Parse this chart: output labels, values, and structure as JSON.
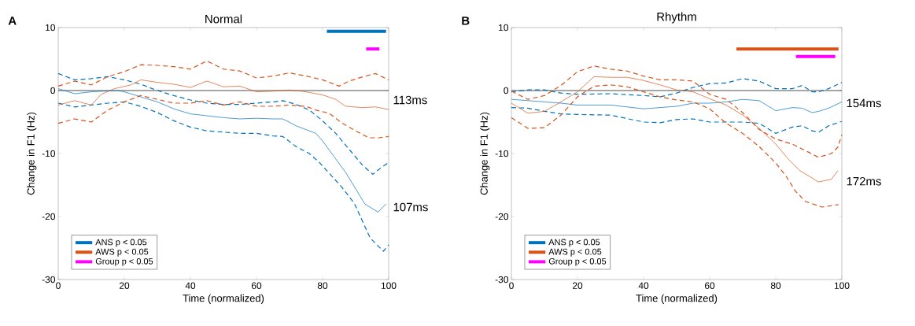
{
  "chart_data": [
    {
      "type": "line",
      "title": "Normal",
      "xlabel": "Time (normalized)",
      "ylabel": "Change in F1 (Hz)",
      "xlim": [
        0,
        100
      ],
      "ylim": [
        -30,
        10
      ],
      "xticks": [
        0,
        20,
        40,
        60,
        80,
        100
      ],
      "yticks": [
        -30,
        -20,
        -10,
        0,
        10
      ],
      "legend": "bottom left",
      "ref_lines": [
        {
          "axis": "y",
          "value": 0,
          "color": "#000000"
        }
      ],
      "annotations": [
        "A",
        "113ms",
        "107ms"
      ],
      "series": [
        {
          "color": "#0072bd",
          "line_style": "solid",
          "x": [
            0,
            5,
            10,
            18,
            20,
            25,
            30,
            35,
            40,
            50,
            55,
            60,
            65,
            68,
            72,
            75,
            78,
            80,
            87,
            92.8,
            96.8,
            99.2
          ],
          "values": [
            0.3,
            -0.5,
            -0.2,
            0,
            -0.2,
            -1,
            -1.8,
            -2.9,
            -3.7,
            -4.3,
            -4.5,
            -4.4,
            -4.5,
            -4.5,
            -5.6,
            -6.2,
            -6.8,
            -8,
            -13,
            -18,
            -19.3,
            -18
          ]
        },
        {
          "color": "#0072bd",
          "line_style": "dashed",
          "x": [
            0,
            5,
            10,
            15,
            20,
            25,
            30,
            35,
            40,
            45,
            50,
            55,
            60,
            65,
            68,
            72,
            76,
            80,
            84,
            88,
            92,
            95.2,
            97.6,
            100
          ],
          "values": [
            2.7,
            1.7,
            1.9,
            2.2,
            1.7,
            1,
            0,
            -0.8,
            -1.5,
            -2,
            -2.2,
            -2.2,
            -2,
            -1.8,
            -1.6,
            -2.2,
            -3.1,
            -4.8,
            -6.8,
            -9.3,
            -11.8,
            -13.3,
            -12.3,
            -11.4
          ]
        },
        {
          "color": "#0072bd",
          "line_style": "dashed",
          "x": [
            0,
            5,
            10,
            15,
            20,
            25,
            30,
            35,
            40,
            45,
            50,
            55,
            60,
            65,
            68,
            72,
            76,
            79,
            85.6,
            89.6,
            94.4,
            98.4,
            100
          ],
          "values": [
            -2,
            -2.6,
            -2.3,
            -2,
            -1.8,
            -2.5,
            -3.5,
            -4.8,
            -5.8,
            -6.4,
            -6.6,
            -6.8,
            -6.8,
            -7.2,
            -7.3,
            -8.9,
            -10,
            -11.4,
            -15.2,
            -17.9,
            -23.4,
            -25.5,
            -24.5
          ]
        },
        {
          "color": "#d95319",
          "line_style": "solid",
          "x": [
            0,
            5,
            10,
            13,
            17,
            22,
            25,
            30,
            35,
            40,
            45,
            50,
            55,
            60,
            65,
            70,
            75,
            80,
            84,
            87,
            92,
            96,
            100
          ],
          "values": [
            -2.3,
            -1.6,
            -2.3,
            -0.6,
            0.3,
            0.9,
            1.7,
            1.3,
            1,
            0.5,
            1.5,
            0.6,
            0.7,
            -0.2,
            -0.1,
            0.1,
            -0.2,
            -0.7,
            -1.4,
            -2.5,
            -2.7,
            -2.6,
            -3
          ]
        },
        {
          "color": "#d95319",
          "line_style": "dashed",
          "x": [
            0,
            5,
            10,
            15,
            20,
            25,
            30,
            35,
            40,
            45,
            50,
            55,
            60,
            65,
            70,
            75,
            80,
            85,
            88,
            93,
            96,
            100
          ],
          "values": [
            0.7,
            1.5,
            0.9,
            2.2,
            3,
            4.1,
            4,
            3.8,
            3.4,
            4.7,
            3.4,
            3.1,
            2,
            2.3,
            2.8,
            2.3,
            1.7,
            0.7,
            1.5,
            2.3,
            2.7,
            1.7
          ]
        },
        {
          "color": "#d95319",
          "line_style": "dashed",
          "x": [
            0,
            5,
            10,
            15,
            20,
            25,
            30,
            35,
            40,
            45,
            50,
            55,
            60,
            65,
            70,
            75,
            78,
            82,
            86,
            90,
            94,
            97,
            100
          ],
          "values": [
            -5.2,
            -4.5,
            -5,
            -3.1,
            -1.8,
            -0.8,
            -1.4,
            -2,
            -2,
            -1.6,
            -2.3,
            -1.8,
            -2.5,
            -2.5,
            -2.3,
            -2.5,
            -3.1,
            -3.6,
            -5.2,
            -6.4,
            -7.5,
            -7.5,
            -7.3
          ]
        },
        {
          "name": "ANS p < 0.05",
          "color": "#0072bd",
          "line_style": "solid",
          "x": [
            81.3,
            99.2
          ],
          "values": [
            9.4,
            9.4
          ]
        },
        {
          "name": "AWS p < 0.05",
          "color": "#d95319",
          "line_style": "solid"
        },
        {
          "name": "Group p < 0.05",
          "color": "#ff00ff",
          "line_style": "solid",
          "x": [
            93.2,
            97.2
          ],
          "values": [
            6.6,
            6.6
          ]
        }
      ]
    },
    {
      "type": "line",
      "title": "Rhythm",
      "xlabel": "Time (normalized)",
      "ylabel": "Change in F1 (Hz)",
      "xlim": [
        0,
        100
      ],
      "ylim": [
        -30,
        10
      ],
      "xticks": [
        0,
        20,
        40,
        60,
        80,
        100
      ],
      "yticks": [
        -30,
        -20,
        -10,
        0,
        10
      ],
      "legend": "bottom left",
      "ref_lines": [
        {
          "axis": "y",
          "value": 0,
          "color": "#000000"
        }
      ],
      "annotations": [
        "B",
        "154ms",
        "172ms"
      ],
      "series": [
        {
          "color": "#0072bd",
          "line_style": "solid",
          "x": [
            0,
            5,
            10,
            15,
            20,
            30,
            40,
            45,
            50,
            55,
            60,
            65,
            70,
            75,
            80,
            85,
            88,
            91,
            93,
            96,
            100
          ],
          "values": [
            -1.4,
            -1.6,
            -1.8,
            -2,
            -2.3,
            -2.3,
            -2.9,
            -2.7,
            -2.5,
            -2,
            -2,
            -1.8,
            -1.4,
            -1.6,
            -3.2,
            -2.7,
            -2.8,
            -3.5,
            -3.3,
            -2.8,
            -1.8
          ]
        },
        {
          "color": "#0072bd",
          "line_style": "dashed",
          "x": [
            0,
            5,
            10,
            15,
            20,
            30,
            40,
            45,
            50,
            55,
            60,
            65,
            70,
            75,
            80,
            85,
            88,
            91,
            93,
            96,
            100
          ],
          "values": [
            -0.2,
            0.1,
            0.1,
            -0.4,
            -0.6,
            -0.5,
            -0.8,
            -1,
            -0.4,
            0.5,
            1.1,
            1.2,
            1.9,
            1.5,
            0.3,
            0.3,
            0.8,
            -0.2,
            -0.2,
            0.3,
            1.3
          ]
        },
        {
          "color": "#0072bd",
          "line_style": "dashed",
          "x": [
            0,
            5,
            10,
            15,
            20,
            30,
            40,
            45,
            50,
            55,
            60,
            65,
            70,
            75,
            80,
            85,
            88,
            91,
            93,
            96,
            100
          ],
          "values": [
            -2.7,
            -2.8,
            -3.3,
            -3.7,
            -3.8,
            -3.9,
            -5,
            -5.1,
            -4.6,
            -4.5,
            -5,
            -5,
            -5,
            -5.2,
            -6.8,
            -5.8,
            -5.6,
            -6.4,
            -6.6,
            -5.6,
            -4.9
          ]
        },
        {
          "color": "#d95319",
          "line_style": "solid",
          "x": [
            0,
            5,
            10,
            15,
            20,
            25,
            30,
            35,
            40,
            45,
            50,
            55,
            60,
            65,
            70,
            75,
            80,
            84,
            87.3,
            92.9,
            96.8,
            98.8
          ],
          "values": [
            -2,
            -3.6,
            -3.3,
            -1.8,
            -0.2,
            2.2,
            2.1,
            2.1,
            1.6,
            0.9,
            0.1,
            -0.2,
            -1.3,
            -2.3,
            -3.9,
            -6,
            -8.5,
            -11,
            -12.7,
            -14.5,
            -14.1,
            -12.7
          ]
        },
        {
          "color": "#d95319",
          "line_style": "dashed",
          "x": [
            0,
            5,
            10,
            15,
            20,
            25,
            30,
            35,
            40,
            45,
            50,
            55,
            60,
            65,
            70,
            75,
            80,
            85,
            90,
            92.9,
            96.8,
            98.8,
            100
          ],
          "values": [
            -0.1,
            -1.4,
            -0.8,
            0.8,
            3,
            3.9,
            3.4,
            3.1,
            2.3,
            1.7,
            1.7,
            1.5,
            -0.6,
            -1.4,
            -3.5,
            -6.2,
            -7.7,
            -8.5,
            -9.8,
            -10.6,
            -10,
            -9,
            -7
          ]
        },
        {
          "color": "#d95319",
          "line_style": "dashed",
          "x": [
            0,
            5,
            10,
            15,
            20,
            25,
            30,
            35,
            40,
            45,
            50,
            55,
            60,
            65,
            70,
            75,
            80,
            83,
            86,
            89,
            94,
            99
          ],
          "values": [
            -4.3,
            -6,
            -5.9,
            -3.9,
            -1,
            0.7,
            0.9,
            0.6,
            -0.2,
            -1,
            -1.5,
            -1.8,
            -2.9,
            -5.2,
            -6.8,
            -8.9,
            -11.5,
            -13.5,
            -16,
            -17.6,
            -18.5,
            -18.1
          ]
        },
        {
          "name": "ANS p < 0.05",
          "color": "#0072bd",
          "line_style": "solid"
        },
        {
          "name": "AWS p < 0.05",
          "color": "#d95319",
          "line_style": "solid",
          "x": [
            68.1,
            99
          ],
          "values": [
            6.6,
            6.6
          ]
        },
        {
          "name": "Group p < 0.05",
          "color": "#ff00ff",
          "line_style": "solid",
          "x": [
            86.1,
            98
          ],
          "values": [
            5.4,
            5.4
          ]
        }
      ]
    }
  ]
}
